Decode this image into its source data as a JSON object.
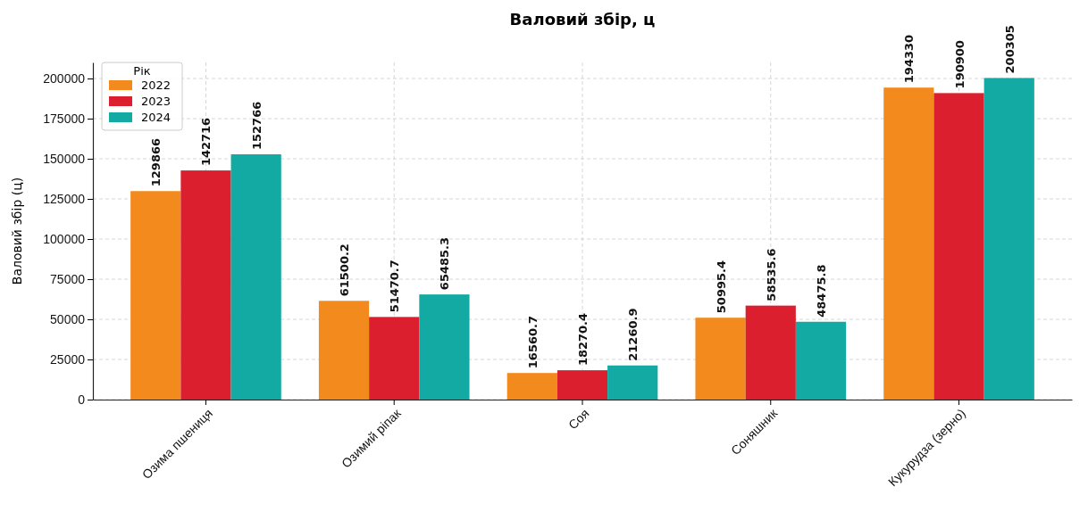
{
  "chart_data": {
    "type": "bar",
    "title": "Валовий збір, ц",
    "ylabel": "Валовий збір (ц)",
    "legend_title": "Рік",
    "categories": [
      "Озима пшениця",
      "Озимий ріпак",
      "Соя",
      "Соняшник",
      "Кукурудза (зерно)"
    ],
    "series": [
      {
        "name": "2022",
        "color": "#f28a1e",
        "values": [
          129866,
          61500.2,
          16560.7,
          50995.4,
          194330
        ]
      },
      {
        "name": "2023",
        "color": "#dc1f2e",
        "values": [
          142716,
          51470.7,
          18270.4,
          58535.6,
          190900
        ]
      },
      {
        "name": "2024",
        "color": "#12aaa2",
        "values": [
          152766,
          65485.3,
          21260.9,
          48475.8,
          200305
        ]
      }
    ],
    "ylim": [
      0,
      210000
    ],
    "yticks": [
      0,
      25000,
      50000,
      75000,
      100000,
      125000,
      150000,
      175000,
      200000
    ],
    "grid": true,
    "legend": "top left",
    "data_labels": true
  }
}
